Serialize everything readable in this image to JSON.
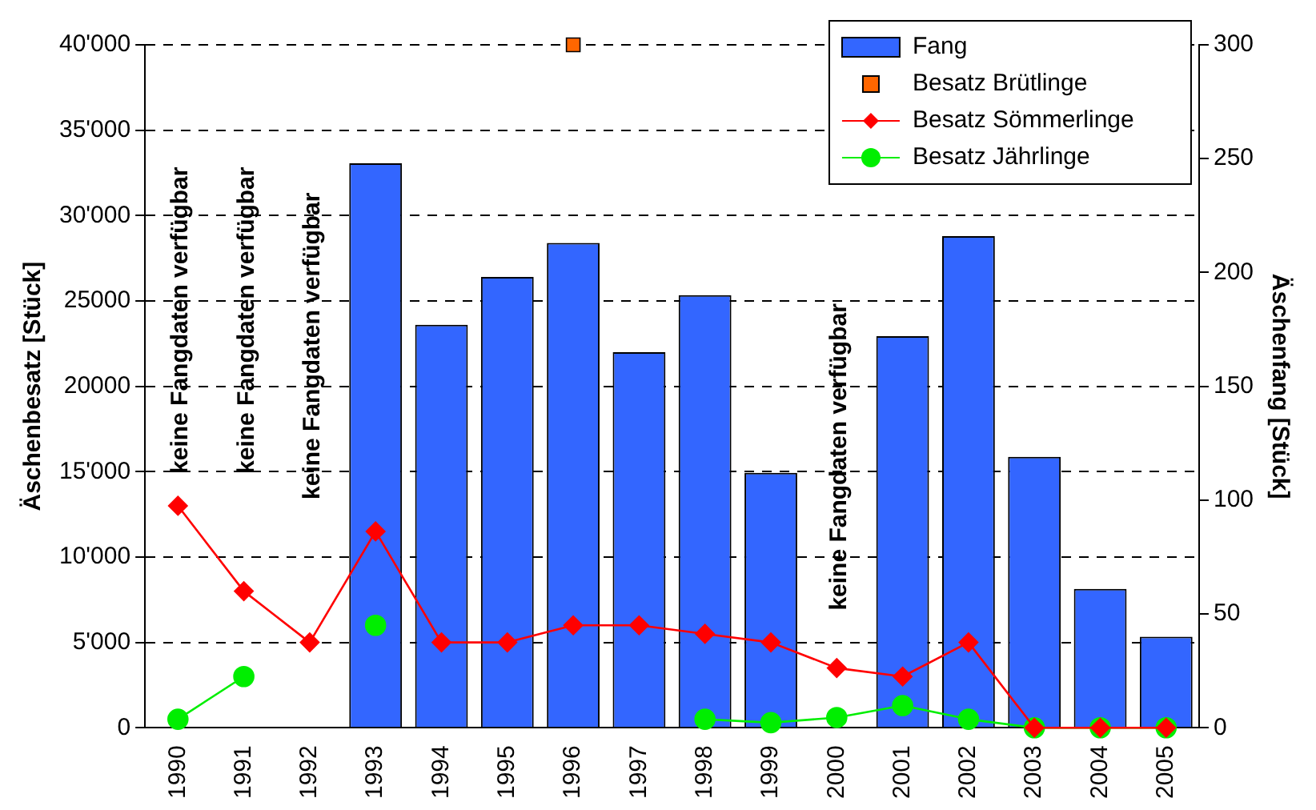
{
  "chart_data": {
    "type": "bar",
    "categories": [
      "1990",
      "1991",
      "1992",
      "1993",
      "1994",
      "1995",
      "1996",
      "1997",
      "1998",
      "1999",
      "2000",
      "2001",
      "2002",
      "2003",
      "2004",
      "2005"
    ],
    "ylabel": "Äschenbesatz [Stück]",
    "y2label": "Äschenfang [Stück]",
    "ylim": [
      0,
      40000
    ],
    "yticks": [
      {
        "value": 0,
        "label": "0"
      },
      {
        "value": 5000,
        "label": "5'000"
      },
      {
        "value": 10000,
        "label": "10'000"
      },
      {
        "value": 15000,
        "label": "15'000"
      },
      {
        "value": 20000,
        "label": "20000"
      },
      {
        "value": 25000,
        "label": "25000"
      },
      {
        "value": 30000,
        "label": "30'000"
      },
      {
        "value": 35000,
        "label": "35'000"
      },
      {
        "value": 40000,
        "label": "40'000"
      }
    ],
    "y2lim": [
      0,
      300
    ],
    "y2ticks": [
      0,
      50,
      100,
      150,
      200,
      250,
      300
    ],
    "grid": "y",
    "legend": "top right",
    "series": [
      {
        "name": "Fang",
        "axis": "y2",
        "color": "#3366ff",
        "values": [
          null,
          null,
          null,
          248,
          177,
          198,
          213,
          165,
          190,
          112,
          null,
          172,
          216,
          119,
          61,
          40
        ]
      },
      {
        "name": "Besatz Brütlinge",
        "type": "scatter",
        "marker": "square",
        "color": "#ff6600",
        "values": [
          null,
          null,
          null,
          null,
          null,
          null,
          40000,
          null,
          null,
          null,
          null,
          null,
          null,
          null,
          null,
          null
        ]
      },
      {
        "name": "Besatz Sömmerlinge",
        "type": "line",
        "marker": "diamond",
        "color": "#ff0000",
        "values": [
          13000,
          8000,
          5000,
          11500,
          5000,
          5000,
          6000,
          6000,
          5500,
          5000,
          3500,
          3000,
          5000,
          0,
          0,
          0
        ]
      },
      {
        "name": "Besatz Jährlinge",
        "type": "line",
        "marker": "circle",
        "color": "#00ee00",
        "values": [
          500,
          3000,
          null,
          6000,
          null,
          null,
          null,
          null,
          500,
          300,
          600,
          1300,
          500,
          0,
          0,
          0
        ]
      }
    ],
    "annotations": [
      "keine Fangdaten verfügbar",
      "keine Fangdaten verfügbar",
      "keine Fangdaten verfügbar",
      "keine Fangdaten verfügbar"
    ]
  }
}
